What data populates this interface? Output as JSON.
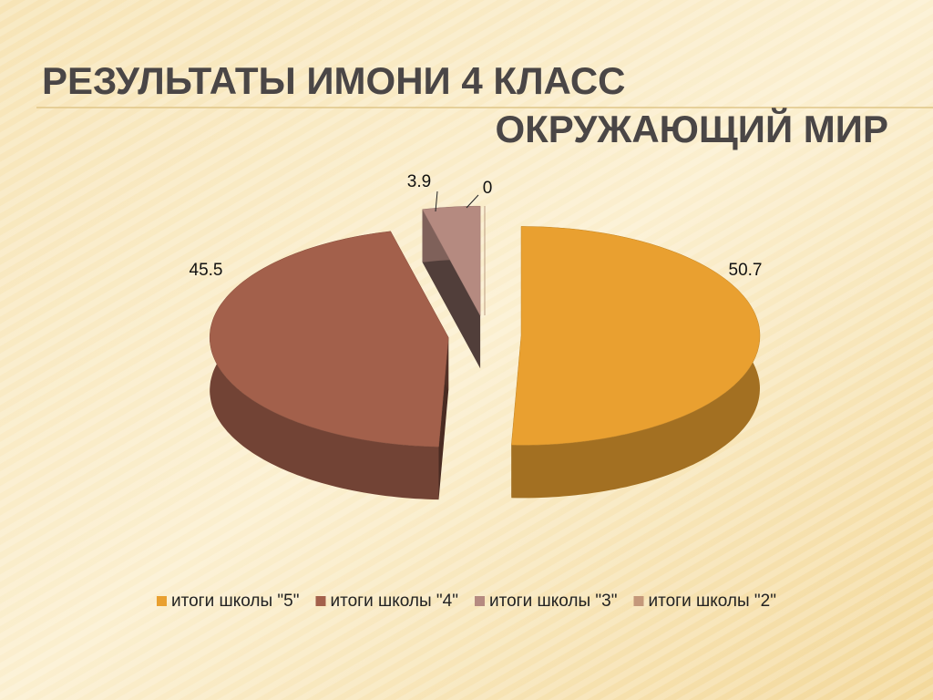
{
  "chart_data": {
    "type": "pie3d",
    "title": "РЕЗУЛЬТАТЫ ИМОНИ 4 КЛАСС",
    "subtitle": "ОКРУЖАЮЩИЙ МИР",
    "categories": [
      "итоги школы \"5\"",
      "итоги школы \"4\"",
      "итоги школы \"3\"",
      "итоги школы \"2\""
    ],
    "values": [
      50.7,
      45.5,
      3.9,
      0
    ],
    "colors": [
      "#e9a030",
      "#a3604b",
      "#b58a80",
      "#c4987a"
    ],
    "legend": "bottom"
  }
}
